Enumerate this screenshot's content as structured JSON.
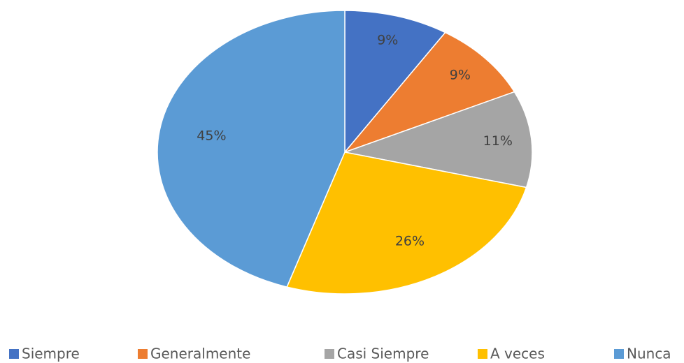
{
  "chart_data": {
    "type": "pie",
    "categories": [
      "Siempre",
      "Generalmente",
      "Casi Siempre",
      "A veces",
      "Nunca"
    ],
    "values": [
      9,
      9,
      11,
      26,
      45
    ],
    "value_labels": [
      "9%",
      "9%",
      "11%",
      "26%",
      "45%"
    ],
    "colors": [
      "#4472c4",
      "#ed7d31",
      "#a5a5a5",
      "#ffc000",
      "#5b9bd5"
    ],
    "legend": "bottom"
  }
}
